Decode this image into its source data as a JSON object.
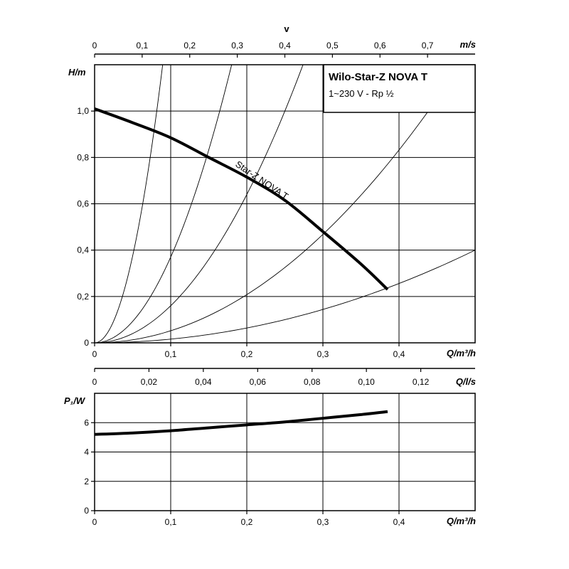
{
  "legend_box": {
    "title": "Wilo-Star-Z NOVA T",
    "subtitle": "1~230 V - Rp ½"
  },
  "chart_data": [
    {
      "type": "line",
      "title": "",
      "xlabel": "Q/m³/h",
      "ylabel": "H/m",
      "xlim": [
        0,
        0.5
      ],
      "ylim": [
        0,
        1.2
      ],
      "x_ticks": [
        "0",
        "0,1",
        "0,2",
        "0,3",
        "0,4"
      ],
      "y_ticks": [
        "0",
        "0,2",
        "0,4",
        "0,6",
        "0,8",
        "1,0"
      ],
      "grid": true,
      "top_axes": [
        {
          "label": "v",
          "unit": "m/s",
          "range": [
            0,
            0.8
          ],
          "ticks": [
            "0",
            "0,1",
            "0,2",
            "0,3",
            "0,4",
            "0,5",
            "0,6",
            "0,7"
          ]
        },
        {
          "label": "Q/l/s",
          "range": [
            0,
            0.14
          ],
          "ticks": [
            "0",
            "0,02",
            "0,04",
            "0,06",
            "0,08",
            "0,10",
            "0,12"
          ]
        }
      ],
      "series": [
        {
          "name": "Star-Z NOVA T",
          "x": [
            0,
            0.05,
            0.1,
            0.15,
            0.2,
            0.25,
            0.3,
            0.35,
            0.385
          ],
          "y": [
            1.01,
            0.95,
            0.885,
            0.8,
            0.715,
            0.615,
            0.48,
            0.34,
            0.23
          ]
        }
      ],
      "system_curves": [
        {
          "coef": 150
        },
        {
          "coef": 37
        },
        {
          "coef": 16
        },
        {
          "coef": 5.2
        },
        {
          "coef": 1.6
        }
      ]
    },
    {
      "type": "line",
      "title": "",
      "xlabel": "Q/m³/h",
      "ylabel": "P₁/W",
      "xlim": [
        0,
        0.5
      ],
      "ylim": [
        0,
        8
      ],
      "x_ticks": [
        "0",
        "0,1",
        "0,2",
        "0,3",
        "0,4"
      ],
      "y_ticks": [
        "0",
        "2",
        "4",
        "6"
      ],
      "grid": true,
      "series": [
        {
          "x": [
            0,
            0.05,
            0.1,
            0.15,
            0.2,
            0.25,
            0.3,
            0.35,
            0.385
          ],
          "y": [
            5.2,
            5.3,
            5.45,
            5.65,
            5.85,
            6.05,
            6.3,
            6.55,
            6.75
          ]
        }
      ]
    }
  ]
}
